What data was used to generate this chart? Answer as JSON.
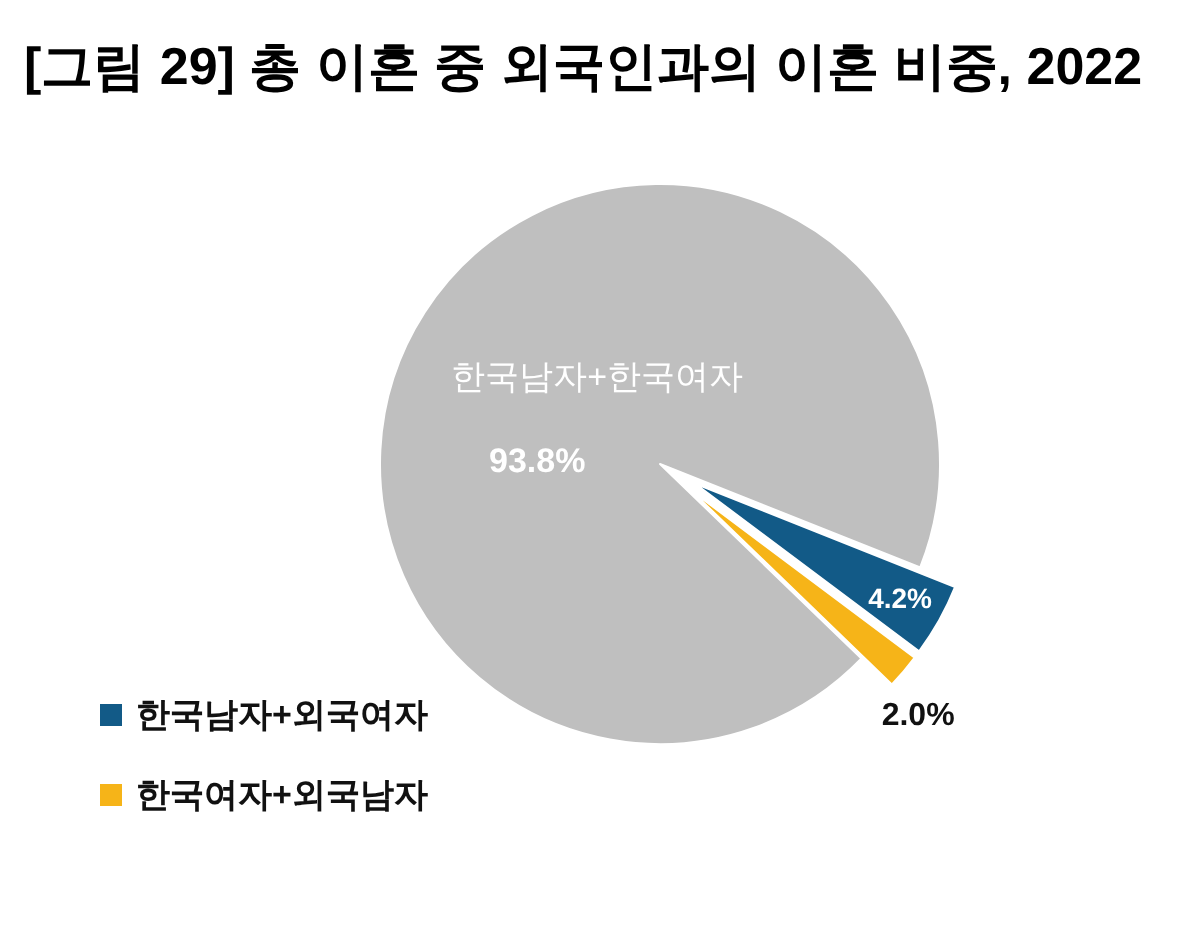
{
  "chart_data": {
    "type": "pie",
    "title": "[그림 29] 총 이혼 중 외국인과의 이혼 비중, 2022",
    "categories": [
      "한국남자+한국여자",
      "한국남자+외국여자",
      "한국여자+외국남자"
    ],
    "values": [
      93.8,
      4.2,
      2.0
    ],
    "colors": [
      "#bfbfbf",
      "#125a87",
      "#f6b418"
    ],
    "value_labels": [
      "93.8%",
      "4.2%",
      "2.0%"
    ],
    "legend": "bottom left"
  }
}
